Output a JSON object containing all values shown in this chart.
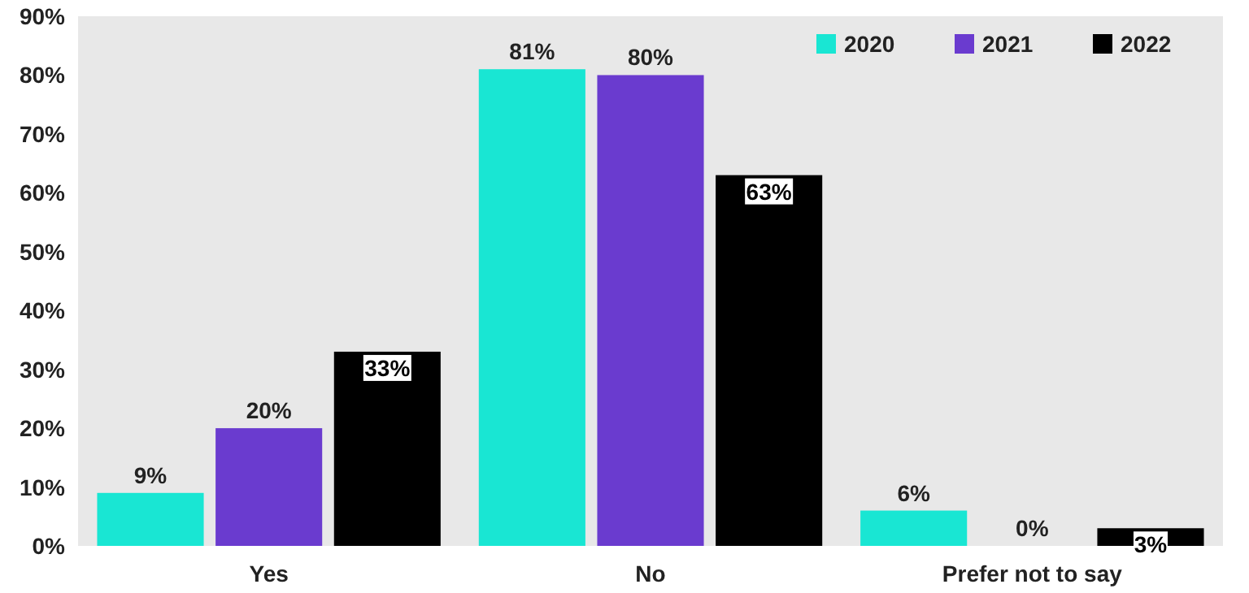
{
  "chart_data": {
    "type": "bar",
    "categories": [
      "Yes",
      "No",
      "Prefer not to say"
    ],
    "series": [
      {
        "name": "2020",
        "color": "#19e6d3",
        "values": [
          9,
          81,
          6
        ]
      },
      {
        "name": "2021",
        "color": "#6a3bcf",
        "values": [
          20,
          80,
          0
        ]
      },
      {
        "name": "2022",
        "color": "#000000",
        "values": [
          33,
          63,
          3
        ]
      }
    ],
    "ylim": [
      0,
      90
    ],
    "yticks": [
      {
        "value": 0,
        "label": "0%"
      },
      {
        "value": 10,
        "label": "10%"
      },
      {
        "value": 20,
        "label": "20%"
      },
      {
        "value": 30,
        "label": "30%"
      },
      {
        "value": 40,
        "label": "40%"
      },
      {
        "value": 50,
        "label": "50%"
      },
      {
        "value": 60,
        "label": "60%"
      },
      {
        "value": 70,
        "label": "70%"
      },
      {
        "value": 80,
        "label": "80%"
      },
      {
        "value": 90,
        "label": "90%"
      }
    ],
    "value_labels": [
      [
        "9%",
        "81%",
        "6%"
      ],
      [
        "20%",
        "80%",
        "0%"
      ],
      [
        "33%",
        "63%",
        "3%"
      ]
    ],
    "legend": "top right",
    "grid": false
  }
}
